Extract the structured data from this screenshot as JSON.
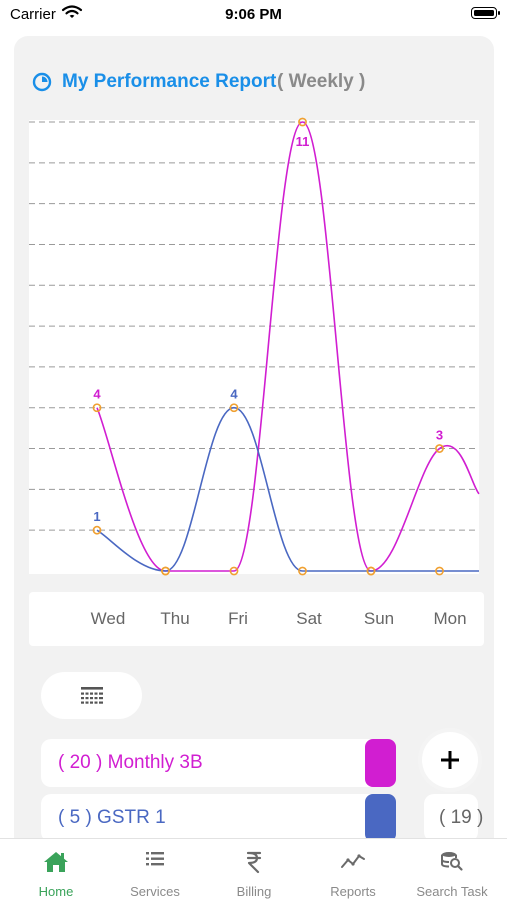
{
  "status_bar": {
    "carrier": "Carrier",
    "time": "9:06 PM"
  },
  "report": {
    "title": "My Performance Report",
    "subtitle": "( Weekly )"
  },
  "chart_data": {
    "type": "line",
    "categories": [
      "Wed",
      "Thu",
      "Fri",
      "Sat",
      "Sun",
      "Mon"
    ],
    "series": [
      {
        "values": [
          4,
          0,
          0,
          11,
          0,
          3
        ],
        "color": "#d11ed1"
      },
      {
        "values": [
          1,
          0,
          4,
          0,
          0,
          0
        ],
        "color": "#4a68c2"
      }
    ],
    "data_labels": [
      {
        "category": "Wed",
        "value": 4,
        "color": "#d11ed1"
      },
      {
        "category": "Wed",
        "value": 1,
        "color": "#4a68c2"
      },
      {
        "category": "Fri",
        "value": 4,
        "color": "#4a68c2"
      },
      {
        "category": "Sat",
        "value": 11,
        "color": "#d11ed1"
      },
      {
        "category": "Mon",
        "value": 3,
        "color": "#d11ed1"
      }
    ],
    "ylim": [
      0,
      11
    ],
    "grid": true,
    "marker_color": "#f0a030",
    "legend": "none"
  },
  "legend_rows": [
    {
      "label": "( 20 ) Monthly 3B",
      "color": "#d11ed1"
    },
    {
      "label": "( 5 ) GSTR 1",
      "color": "#4a68c2"
    }
  ],
  "side_chip": {
    "label": "( 19 )"
  },
  "fab": {
    "icon": "plus-icon"
  },
  "filter": {
    "icon": "filter-icon"
  },
  "tabs": [
    {
      "label": "Home",
      "icon": "home-icon",
      "active": true
    },
    {
      "label": "Services",
      "icon": "list-icon"
    },
    {
      "label": "Billing",
      "icon": "rupee-icon"
    },
    {
      "label": "Reports",
      "icon": "chart-line-icon"
    },
    {
      "label": "Search Task",
      "icon": "search-task-icon"
    }
  ],
  "colors": {
    "accent": "#1a8fe8",
    "active_tab": "#3aa35a"
  }
}
